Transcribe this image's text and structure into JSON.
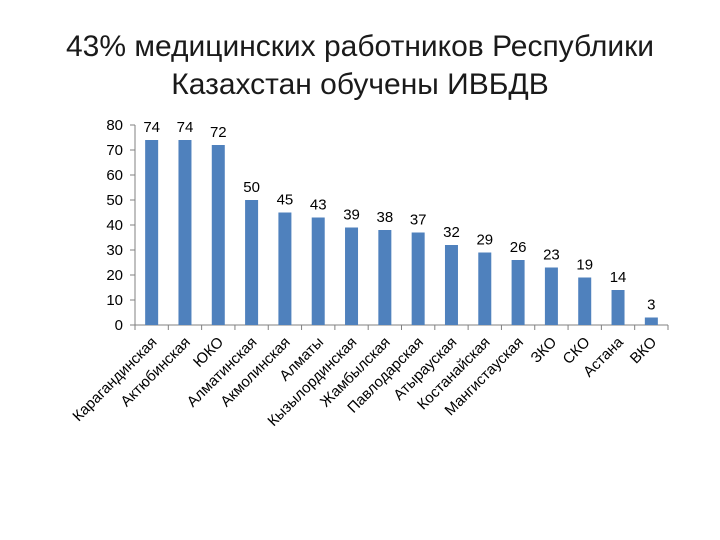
{
  "title_lines": [
    "43% медицинских работников Республики",
    "Казахстан обучены ИВБДВ"
  ],
  "chart_data": {
    "type": "bar",
    "title": "43% медицинских работников Республики Казахстан обучены ИВБДВ",
    "categories": [
      "Карагандинская",
      "Актюбинская",
      "ЮКО",
      "Алматинская",
      "Акмолинская",
      "Алматы",
      "Кызылординская",
      "Жамбылская",
      "Павлодарская",
      "Атырауская",
      "Костанайская",
      "Мангистауская",
      "ЗКО",
      "СКО",
      "Астана",
      "ВКО"
    ],
    "values": [
      74,
      74,
      72,
      50,
      45,
      43,
      39,
      38,
      37,
      32,
      29,
      26,
      23,
      19,
      14,
      3
    ],
    "ylim": [
      0,
      80
    ],
    "yticks": [
      0,
      10,
      20,
      30,
      40,
      50,
      60,
      70,
      80
    ],
    "grid": false,
    "bar_color": "#4f81bd",
    "data_labels": true
  }
}
